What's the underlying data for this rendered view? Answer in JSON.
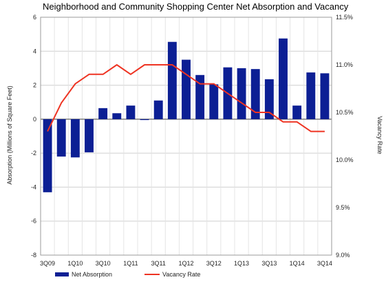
{
  "chart_data": {
    "type": "bar+line",
    "title": "Neighborhood and Community Shopping Center Net Absorption and Vacancy",
    "ylabel_left": "Absorption (Millions of Square Feet)",
    "ylabel_right": "Vacancy Rate",
    "ylim_left": [
      -8,
      6
    ],
    "ylim_right": [
      9.0,
      11.5
    ],
    "yticks_left": [
      "6",
      "4",
      "2",
      "0",
      "-2",
      "-4",
      "-6",
      "-8"
    ],
    "yticks_right": [
      "11.5%",
      "11.0%",
      "10.5%",
      "10.0%",
      "9.5%",
      "9.0%"
    ],
    "categories": [
      "3Q09",
      "4Q09",
      "1Q10",
      "2Q10",
      "3Q10",
      "4Q10",
      "1Q11",
      "2Q11",
      "3Q11",
      "4Q11",
      "1Q12",
      "2Q12",
      "3Q12",
      "4Q12",
      "1Q13",
      "2Q13",
      "3Q13",
      "4Q13",
      "1Q14",
      "2Q14",
      "3Q14"
    ],
    "x_tick_labels": [
      "3Q09",
      "1Q10",
      "3Q10",
      "1Q11",
      "3Q11",
      "1Q12",
      "3Q12",
      "1Q13",
      "3Q13",
      "1Q14",
      "3Q14"
    ],
    "series": [
      {
        "name": "Net Absorption",
        "type": "bar",
        "axis": "left",
        "color": "#0c1f94",
        "values": [
          -4.3,
          -2.2,
          -2.25,
          -1.95,
          0.65,
          0.35,
          0.8,
          -0.05,
          1.1,
          4.55,
          3.5,
          2.6,
          2.05,
          3.05,
          3.0,
          2.95,
          2.35,
          4.75,
          0.8,
          2.75,
          2.7
        ]
      },
      {
        "name": "Vacancy Rate",
        "type": "line",
        "axis": "right",
        "color": "#ee3322",
        "values": [
          10.3,
          10.6,
          10.8,
          10.9,
          10.9,
          11.0,
          10.9,
          11.0,
          11.0,
          11.0,
          10.9,
          10.8,
          10.8,
          10.7,
          10.6,
          10.5,
          10.5,
          10.4,
          10.4,
          10.3,
          10.3
        ]
      }
    ],
    "legend_position": "bottom-left",
    "grid": true
  }
}
